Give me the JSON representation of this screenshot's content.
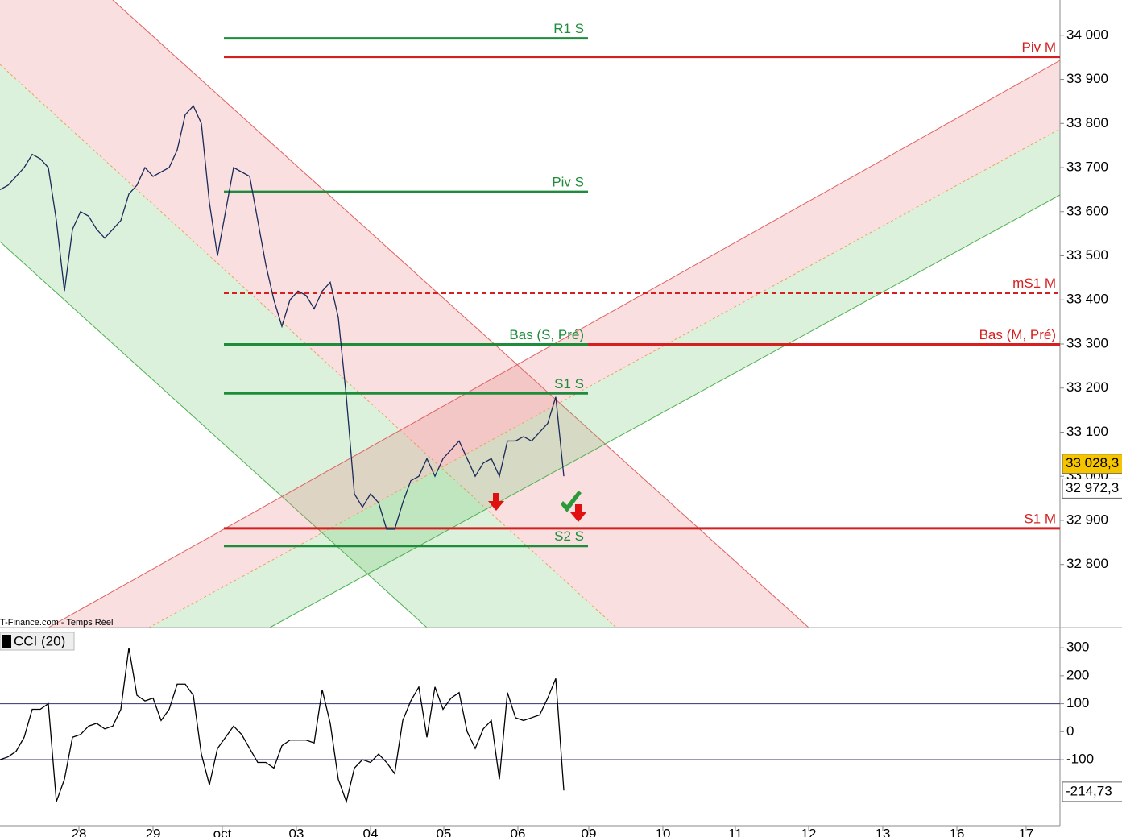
{
  "chart_data": [
    {
      "type": "line",
      "source": "T-Finance.com - Temps Réel",
      "x": [
        0,
        1,
        2,
        3,
        4,
        5,
        6,
        7,
        8,
        9,
        10,
        11,
        12,
        13,
        14,
        15,
        16,
        17,
        18,
        19,
        20,
        21,
        22,
        23,
        24,
        25,
        26,
        27,
        28,
        29,
        30,
        31,
        32,
        33,
        34,
        35,
        36,
        37,
        38,
        39,
        40,
        41,
        42,
        43,
        44,
        45,
        46,
        47,
        48,
        49,
        50,
        51,
        52,
        53,
        54,
        55,
        56,
        57,
        58,
        59,
        60,
        61,
        62,
        63,
        64,
        65,
        66,
        67,
        68,
        69,
        70
      ],
      "series": [
        {
          "color": "#1a2a5a",
          "values": [
            33650,
            33660,
            33680,
            33700,
            33730,
            33720,
            33700,
            33580,
            33420,
            33560,
            33600,
            33590,
            33560,
            33540,
            33560,
            33580,
            33640,
            33660,
            33700,
            33680,
            33690,
            33700,
            33740,
            33820,
            33840,
            33800,
            33620,
            33500,
            33600,
            33700,
            33690,
            33680,
            33580,
            33480,
            33400,
            33340,
            33400,
            33420,
            33410,
            33380,
            33420,
            33440,
            33360,
            33180,
            32960,
            32930,
            32960,
            32940,
            32880,
            32880,
            32940,
            32990,
            33000,
            33040,
            33000,
            33040,
            33060,
            33080,
            33040,
            33000,
            33030,
            33040,
            33000,
            33080,
            33080,
            33090,
            33080,
            33100,
            33120,
            33180,
            33000
          ]
        }
      ],
      "xlim": [
        0,
        131.6
      ],
      "xticks": [
        {
          "value": 9.8,
          "label": "28"
        },
        {
          "value": 19,
          "label": "29"
        },
        {
          "value": 27.6,
          "label": "oct"
        },
        {
          "value": 36.8,
          "label": "03"
        },
        {
          "value": 46,
          "label": "04"
        },
        {
          "value": 55.1,
          "label": "05"
        },
        {
          "value": 64.3,
          "label": "06"
        },
        {
          "value": 73.1,
          "label": "09"
        },
        {
          "value": 82.3,
          "label": "10"
        },
        {
          "value": 91.3,
          "label": "11"
        },
        {
          "value": 100.4,
          "label": "12"
        },
        {
          "value": 109.6,
          "label": "13"
        },
        {
          "value": 118.8,
          "label": "16"
        },
        {
          "value": 127.4,
          "label": "17"
        }
      ],
      "ylim": [
        32657,
        34080
      ],
      "yticks": [
        {
          "value": 32800,
          "label": "32 800"
        },
        {
          "value": 32900,
          "label": "32 900"
        },
        {
          "value": 33000,
          "label": "33 000"
        },
        {
          "value": 33100,
          "label": "33 100"
        },
        {
          "value": 33200,
          "label": "33 200"
        },
        {
          "value": 33300,
          "label": "33 300"
        },
        {
          "value": 33400,
          "label": "33 400"
        },
        {
          "value": 33500,
          "label": "33 500"
        },
        {
          "value": 33600,
          "label": "33 600"
        },
        {
          "value": 33700,
          "label": "33 700"
        },
        {
          "value": 33800,
          "label": "33 800"
        },
        {
          "value": 33900,
          "label": "33 900"
        },
        {
          "value": 34000,
          "label": "34 000"
        }
      ],
      "levels": [
        {
          "name": "R1 S",
          "value": 33993,
          "color": "#1e8c3a",
          "x": [
            27.8,
            73
          ]
        },
        {
          "name": "Piv M",
          "value": 33951,
          "color": "#d42020",
          "x": [
            27.8,
            131.6
          ]
        },
        {
          "name": "Piv S",
          "value": 33645,
          "color": "#1e8c3a",
          "x": [
            27.8,
            73
          ]
        },
        {
          "name": "mS1 M",
          "value": 33416,
          "color": "#d42020",
          "x": [
            27.8,
            131.6
          ],
          "dashed": true
        },
        {
          "name": "Bas (S, Pré)",
          "value": 33299,
          "color": "#1e8c3a",
          "x": [
            27.8,
            73
          ]
        },
        {
          "name": "Bas (M, Pré)",
          "value": 33299,
          "color": "#d42020",
          "x": [
            73,
            131.6
          ]
        },
        {
          "name": "S1 S",
          "value": 33188,
          "color": "#1e8c3a",
          "x": [
            27.8,
            73
          ]
        },
        {
          "name": "S1 M",
          "value": 32882,
          "color": "#d42020",
          "x": [
            27.8,
            131.6
          ]
        },
        {
          "name": "S2 S",
          "value": 32842,
          "color": "#1e8c3a",
          "x": [
            27.8,
            73
          ]
        }
      ],
      "price_tags": [
        {
          "value": 33028.3,
          "label": "33 028,3",
          "color": "#f5c400"
        },
        {
          "value": 32972.3,
          "label": "32 972,3",
          "color": "#ffffff"
        }
      ]
    },
    {
      "type": "line",
      "title": "CCI (20)",
      "x": [
        0,
        1,
        2,
        3,
        4,
        5,
        6,
        7,
        8,
        9,
        10,
        11,
        12,
        13,
        14,
        15,
        16,
        17,
        18,
        19,
        20,
        21,
        22,
        23,
        24,
        25,
        26,
        27,
        28,
        29,
        30,
        31,
        32,
        33,
        34,
        35,
        36,
        37,
        38,
        39,
        40,
        41,
        42,
        43,
        44,
        45,
        46,
        47,
        48,
        49,
        50,
        51,
        52,
        53,
        54,
        55,
        56,
        57,
        58,
        59,
        60,
        61,
        62,
        63,
        64,
        65,
        66,
        67,
        68,
        69,
        70
      ],
      "series": [
        {
          "color": "#000000",
          "values": [
            -100,
            -90,
            -70,
            -20,
            80,
            80,
            100,
            -250,
            -170,
            -20,
            -10,
            20,
            30,
            10,
            20,
            80,
            300,
            130,
            110,
            120,
            40,
            80,
            170,
            170,
            130,
            -80,
            -190,
            -60,
            -20,
            20,
            -10,
            -60,
            -110,
            -110,
            -130,
            -50,
            -30,
            -30,
            -30,
            -40,
            150,
            30,
            -170,
            -250,
            -130,
            -100,
            -110,
            -80,
            -110,
            -150,
            40,
            110,
            160,
            -20,
            160,
            80,
            120,
            140,
            0,
            -60,
            10,
            40,
            -170,
            140,
            50,
            40,
            50,
            60,
            120,
            190,
            -210
          ]
        }
      ],
      "xlim": [
        0,
        131.6
      ],
      "ylim": [
        -336,
        355
      ],
      "yticks": [
        -100,
        0,
        100,
        200,
        300
      ],
      "levels": [
        100,
        -100
      ],
      "price_tags": [
        {
          "value": -214.73,
          "label": "-214,73",
          "color": "#ffffff"
        }
      ]
    }
  ]
}
